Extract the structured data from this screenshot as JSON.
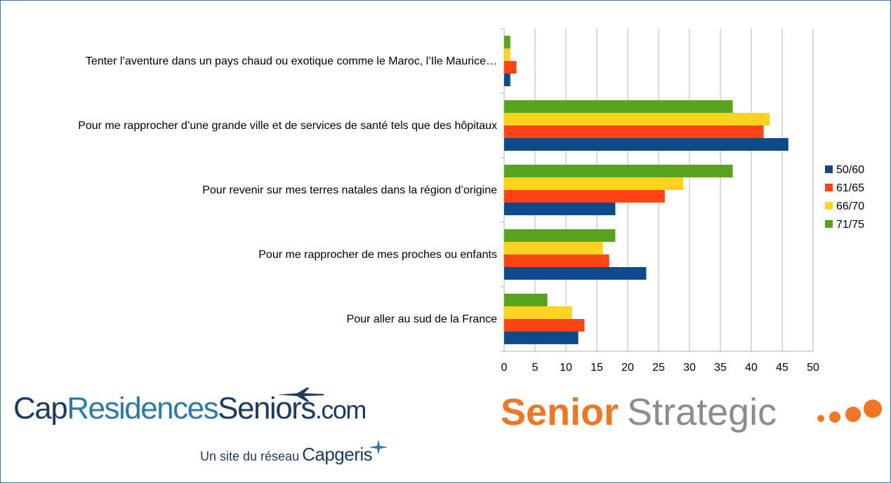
{
  "chart_data": {
    "type": "bar",
    "orientation": "horizontal",
    "categories": [
      "Tenter l’aventure dans un pays chaud ou exotique comme le Maroc, l’Ile Maurice…",
      "Pour me rapprocher d’une grande ville et de services de santé tels que des hôpitaux",
      "Pour revenir sur mes terres natales dans la région d’origine",
      "Pour me rapprocher de mes proches ou enfants",
      "Pour aller au sud de la France"
    ],
    "series": [
      {
        "name": "50/60",
        "color": "#0d4a8a",
        "values": [
          1,
          46,
          18,
          23,
          12
        ]
      },
      {
        "name": "61/65",
        "color": "#ff4312",
        "values": [
          2,
          42,
          26,
          17,
          13
        ]
      },
      {
        "name": "66/70",
        "color": "#ffd320",
        "values": [
          1,
          43,
          29,
          16,
          11
        ]
      },
      {
        "name": "71/75",
        "color": "#57a320",
        "values": [
          1,
          37,
          37,
          18,
          7
        ]
      }
    ],
    "xlim": [
      0,
      50
    ],
    "xticks": [
      "0",
      "5",
      "10",
      "15",
      "20",
      "25",
      "30",
      "35",
      "40",
      "45",
      "50"
    ],
    "grid": true,
    "legend_position": "right",
    "title": "",
    "xlabel": "",
    "ylabel": ""
  },
  "logos": {
    "cap_part1": "Cap",
    "cap_part2": "Residences",
    "cap_part3": "Seniors",
    "cap_part4": ".com",
    "network_text": "Un site du réseau",
    "network_brand": "Capgeris",
    "senior_word": "Senior",
    "strategic_word": "Strategic",
    "icons": [
      "plane-icon",
      "star-icon",
      "dots-icon"
    ],
    "colors": {
      "cap_dark": "#1d3b5e",
      "cap_blue": "#2d7aa8",
      "senior_orange": "#ef7622",
      "strategic_gray": "#8c8c8c"
    }
  }
}
